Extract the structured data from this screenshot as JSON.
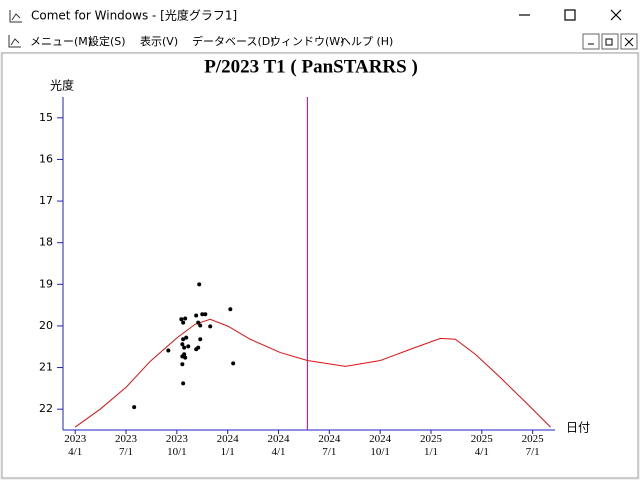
{
  "window": {
    "title": "Comet for Windows - [光度グラフ1]"
  },
  "menu": [
    "メニュー(M)",
    "設定(S)",
    "表示(V)",
    "データベース(D)",
    "ウィンドウ(W)",
    "ヘルプ (H)"
  ],
  "chart_data": {
    "type": "scatter",
    "title": "P/2023 T1 ( PanSTARRS )",
    "y_label": "光度",
    "x_label": "日付",
    "axis_color": "#2020c0",
    "ylim": [
      22.5,
      14.5
    ],
    "yticks": [
      15,
      16,
      17,
      18,
      19,
      20,
      21,
      22
    ],
    "xlim": [
      2023.19,
      2025.61
    ],
    "xticks": [
      {
        "value": 2023.25,
        "label": "2023\n4/1"
      },
      {
        "value": 2023.5,
        "label": "2023\n7/1"
      },
      {
        "value": 2023.75,
        "label": "2023\n10/1"
      },
      {
        "value": 2024.0,
        "label": "2024\n1/1"
      },
      {
        "value": 2024.25,
        "label": "2024\n4/1"
      },
      {
        "value": 2024.5,
        "label": "2024\n7/1"
      },
      {
        "value": 2024.75,
        "label": "2024\n10/1"
      },
      {
        "value": 2025.0,
        "label": "2025\n1/1"
      },
      {
        "value": 2025.25,
        "label": "2025\n4/1"
      },
      {
        "value": 2025.5,
        "label": "2025\n7/1"
      }
    ],
    "current_date": {
      "x": 2024.392,
      "color": "#b000b0"
    },
    "curve": {
      "color": "#e01010",
      "x": [
        2023.25,
        2023.373,
        2023.501,
        2023.619,
        2023.752,
        2023.84,
        2023.914,
        2024.003,
        2024.111,
        2024.259,
        2024.392,
        2024.579,
        2024.751,
        2024.899,
        2025.046,
        2025.12,
        2025.218,
        2025.341,
        2025.465,
        2025.588
      ],
      "y": [
        22.43,
        22.0,
        21.47,
        20.85,
        20.28,
        19.96,
        19.84,
        20.01,
        20.32,
        20.64,
        20.83,
        20.97,
        20.83,
        20.56,
        20.3,
        20.32,
        20.68,
        21.24,
        21.83,
        22.43
      ]
    },
    "observations": {
      "color": "#000000",
      "x": [
        2023.54,
        2023.708,
        2023.772,
        2023.781,
        2023.791,
        2023.781,
        2023.796,
        2023.777,
        2023.786,
        2023.806,
        2023.777,
        2023.786,
        2023.791,
        2023.777,
        2023.781,
        2023.86,
        2023.845,
        2023.875,
        2023.89,
        2023.855,
        2023.865,
        2023.914,
        2023.865,
        2023.855,
        2023.845,
        2024.013,
        2024.027
      ],
      "y": [
        21.95,
        20.59,
        19.84,
        19.92,
        19.82,
        20.32,
        20.28,
        20.44,
        20.52,
        20.49,
        20.73,
        20.68,
        20.76,
        20.92,
        21.38,
        19.0,
        19.75,
        19.72,
        19.72,
        19.92,
        19.99,
        20.01,
        20.32,
        20.52,
        20.56,
        19.6,
        20.9
      ]
    }
  }
}
